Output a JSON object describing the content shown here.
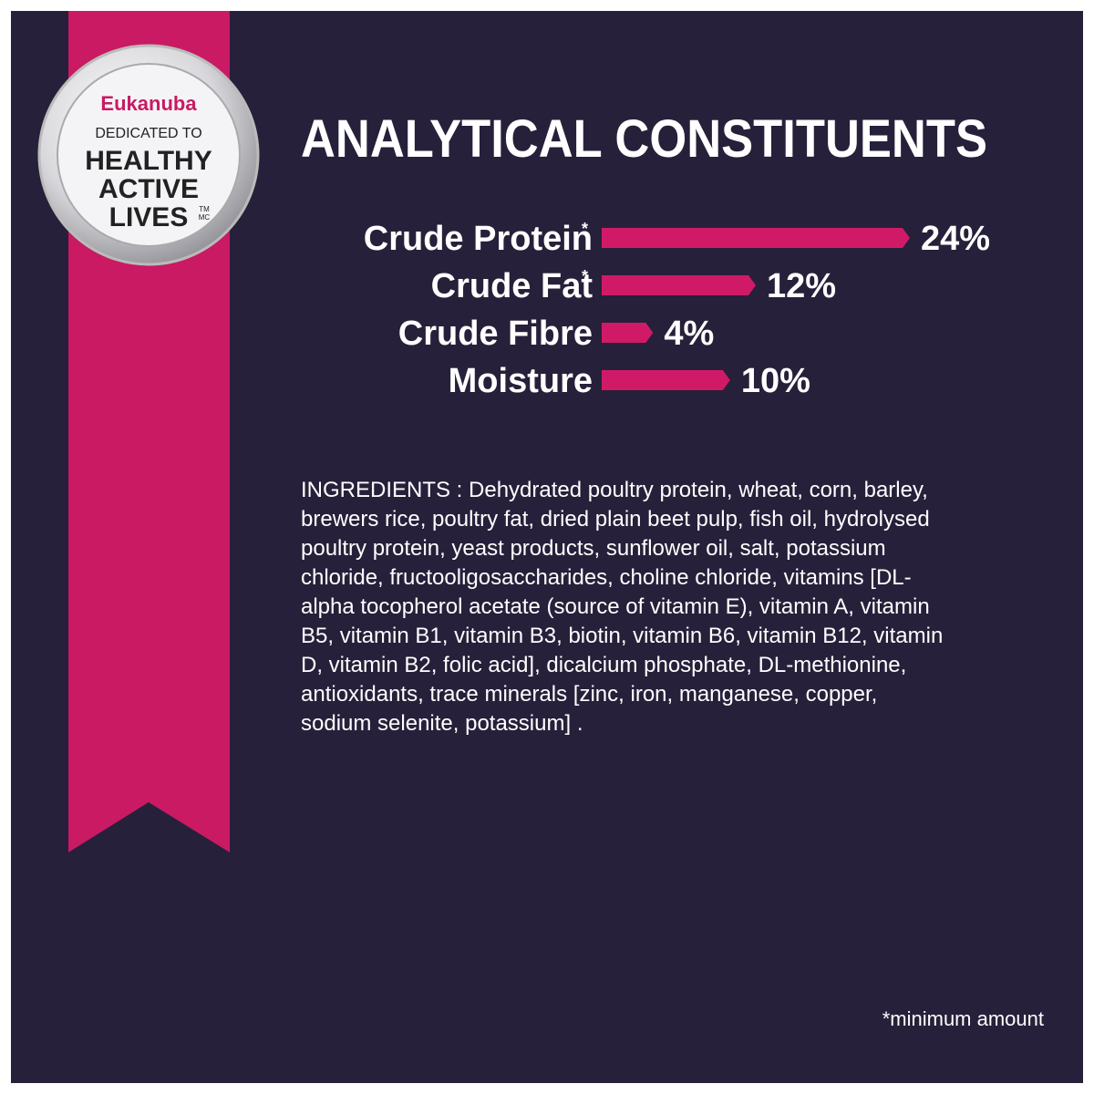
{
  "badge": {
    "brand": "Eukanuba",
    "line1": "DEDICATED TO",
    "line2": "HEALTHY",
    "line3": "ACTIVE",
    "line4": "LIVES",
    "mark1": "TM",
    "mark2": "MC"
  },
  "chart_data": {
    "type": "bar",
    "orientation": "horizontal",
    "title": "ANALYTICAL CONSTITUENTS",
    "categories": [
      "Crude Protein",
      "Crude Fat",
      "Crude Fibre",
      "Moisture"
    ],
    "category_notes": [
      "*",
      "*",
      null,
      null
    ],
    "values": [
      24,
      12,
      4,
      10
    ],
    "value_labels": [
      "24%",
      "12%",
      "4%",
      "10%"
    ],
    "color": "#d01a68"
  },
  "ingredients": {
    "lines": [
      "INGREDIENTS : Dehydrated poultry protein, wheat, corn, barley,",
      "brewers rice, poultry fat, dried plain beet pulp, fish oil, hydrolysed",
      "poultry protein, yeast products, sunflower oil, salt, potassium",
      "chloride, fructooligosaccharides, choline chloride, vitamins [DL-",
      "alpha tocopherol acetate (source of vitamin E), vitamin A, vitamin",
      "B5, vitamin B1, vitamin B3, biotin, vitamin B6, vitamin B12, vitamin",
      "D, vitamin B2, folic acid], dicalcium phosphate, DL-methionine,",
      "antioxidants, trace minerals [zinc, iron, manganese, copper,",
      "sodium selenite, potassium] ."
    ]
  },
  "footnote": "*minimum amount"
}
